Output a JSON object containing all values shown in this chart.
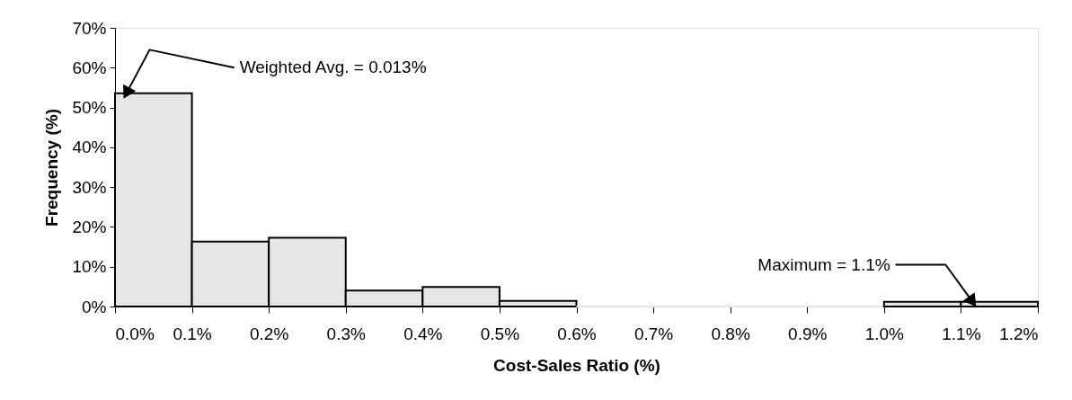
{
  "chart_data": {
    "type": "histogram",
    "xlabel": "Cost-Sales Ratio (%)",
    "ylabel": "Frequency (%)",
    "bins": [
      0.0,
      0.1,
      0.2,
      0.3,
      0.4,
      0.5,
      0.6,
      0.7,
      0.8,
      0.9,
      1.0,
      1.1,
      1.2
    ],
    "values": [
      53.6,
      16.3,
      17.3,
      4.0,
      4.9,
      1.4,
      0,
      0,
      0,
      0,
      1.2,
      1.2
    ],
    "color": "#e6e6e6",
    "xlim": [
      0.0,
      1.2
    ],
    "xticks": [
      {
        "value": 0.0,
        "label": "0.0%"
      },
      {
        "value": 0.1,
        "label": "0.1%"
      },
      {
        "value": 0.2,
        "label": "0.2%"
      },
      {
        "value": 0.3,
        "label": "0.3%"
      },
      {
        "value": 0.4,
        "label": "0.4%"
      },
      {
        "value": 0.5,
        "label": "0.5%"
      },
      {
        "value": 0.6,
        "label": "0.6%"
      },
      {
        "value": 0.7,
        "label": "0.7%"
      },
      {
        "value": 0.8,
        "label": "0.8%"
      },
      {
        "value": 0.9,
        "label": "0.9%"
      },
      {
        "value": 1.0,
        "label": "1.0%"
      },
      {
        "value": 1.1,
        "label": "1.1%"
      },
      {
        "value": 1.2,
        "label": "1.2%"
      }
    ],
    "ylim": [
      0,
      70
    ],
    "yticks": [
      {
        "value": 0,
        "label": "0%"
      },
      {
        "value": 10,
        "label": "10%"
      },
      {
        "value": 20,
        "label": "20%"
      },
      {
        "value": 30,
        "label": "30%"
      },
      {
        "value": 40,
        "label": "40%"
      },
      {
        "value": 50,
        "label": "50%"
      },
      {
        "value": 60,
        "label": "60%"
      },
      {
        "value": 70,
        "label": "70%"
      }
    ],
    "grid": false,
    "annotations": [
      {
        "text": "Weighted Avg. = 0.013%",
        "x": 0.015,
        "y": 53.6
      },
      {
        "text": "Maximum = 1.1%",
        "x": 1.115,
        "y": 1.2
      }
    ]
  }
}
